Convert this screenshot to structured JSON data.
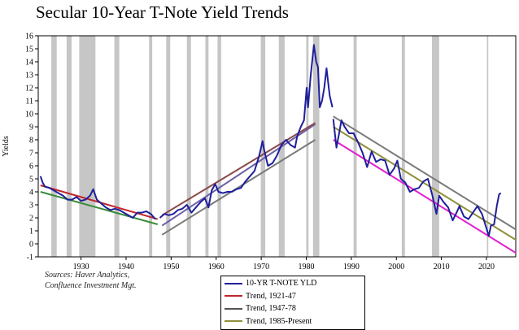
{
  "chart_data": {
    "type": "line",
    "title": "Secular 10-Year T-Note Yield Trends",
    "xlabel": "",
    "ylabel": "Yields",
    "xlim": [
      1920.5,
      2026.5
    ],
    "ylim": [
      -1,
      16
    ],
    "yticks": [
      -1,
      0,
      1,
      2,
      3,
      4,
      5,
      6,
      7,
      8,
      9,
      10,
      11,
      12,
      13,
      14,
      15,
      16
    ],
    "xticks": [
      1930,
      1940,
      1950,
      1960,
      1970,
      1980,
      1990,
      2000,
      2010,
      2020
    ],
    "grid": false,
    "legend_position": "bottom",
    "recessions": [
      [
        1923.4,
        1924.6
      ],
      [
        1926.8,
        1927.9
      ],
      [
        1929.6,
        1933.2
      ],
      [
        1937.4,
        1938.5
      ],
      [
        1945.1,
        1945.8
      ],
      [
        1948.9,
        1949.8
      ],
      [
        1953.5,
        1954.4
      ],
      [
        1957.6,
        1958.3
      ],
      [
        1960.3,
        1961.1
      ],
      [
        1969.9,
        1970.9
      ],
      [
        1973.9,
        1975.2
      ],
      [
        1980.0,
        1980.5
      ],
      [
        1981.5,
        1982.9
      ],
      [
        1990.5,
        1991.2
      ],
      [
        2001.2,
        2001.9
      ],
      [
        2007.9,
        2009.5
      ],
      [
        2020.1,
        2020.4
      ]
    ],
    "series": [
      {
        "name": "10-YR T-NOTE YLD",
        "color": "#1f1f9c",
        "segments": [
          [
            [
              1921.0,
              5.2
            ],
            [
              1921.5,
              4.7
            ],
            [
              1922.0,
              4.4
            ],
            [
              1923.0,
              4.3
            ],
            [
              1924.0,
              4.1
            ],
            [
              1925.0,
              3.9
            ],
            [
              1926.0,
              3.7
            ],
            [
              1927.0,
              3.4
            ],
            [
              1928.0,
              3.4
            ],
            [
              1929.0,
              3.6
            ],
            [
              1930.0,
              3.3
            ],
            [
              1931.0,
              3.4
            ],
            [
              1932.0,
              3.7
            ],
            [
              1932.7,
              4.2
            ],
            [
              1933.5,
              3.4
            ],
            [
              1934.5,
              3.1
            ],
            [
              1935.5,
              2.8
            ],
            [
              1936.5,
              2.6
            ],
            [
              1937.5,
              2.7
            ],
            [
              1938.5,
              2.6
            ],
            [
              1939.5,
              2.4
            ],
            [
              1940.5,
              2.2
            ],
            [
              1941.5,
              2.0
            ],
            [
              1942.5,
              2.4
            ],
            [
              1943.5,
              2.4
            ],
            [
              1944.5,
              2.5
            ],
            [
              1945.5,
              2.3
            ],
            [
              1946.5,
              1.9
            ]
          ],
          [
            [
              1947.5,
              2.0
            ],
            [
              1948.5,
              2.3
            ],
            [
              1949.5,
              2.2
            ],
            [
              1950.5,
              2.3
            ],
            [
              1951.5,
              2.6
            ],
            [
              1952.5,
              2.7
            ],
            [
              1953.5,
              3.0
            ],
            [
              1954.5,
              2.4
            ],
            [
              1955.5,
              2.8
            ],
            [
              1956.5,
              3.2
            ],
            [
              1957.5,
              3.5
            ],
            [
              1958.3,
              2.8
            ],
            [
              1959.0,
              4.1
            ],
            [
              1959.8,
              4.6
            ],
            [
              1960.5,
              4.0
            ],
            [
              1961.5,
              3.9
            ],
            [
              1962.5,
              4.0
            ],
            [
              1963.5,
              4.0
            ],
            [
              1964.5,
              4.2
            ],
            [
              1965.5,
              4.3
            ],
            [
              1966.5,
              4.8
            ],
            [
              1967.5,
              5.2
            ],
            [
              1968.5,
              5.6
            ],
            [
              1969.5,
              6.7
            ],
            [
              1970.3,
              7.9
            ],
            [
              1970.6,
              7.3
            ],
            [
              1971.5,
              6.0
            ],
            [
              1972.5,
              6.2
            ],
            [
              1973.5,
              6.8
            ],
            [
              1974.5,
              7.6
            ],
            [
              1975.5,
              8.0
            ],
            [
              1976.5,
              7.6
            ],
            [
              1977.5,
              7.4
            ],
            [
              1978.0,
              8.3
            ],
            [
              1978.8,
              9.0
            ],
            [
              1979.5,
              9.5
            ],
            [
              1980.1,
              12.0
            ],
            [
              1980.4,
              10.5
            ],
            [
              1981.0,
              13.0
            ],
            [
              1981.7,
              15.3
            ],
            [
              1982.2,
              14.0
            ],
            [
              1982.6,
              13.6
            ],
            [
              1983.0,
              10.5
            ],
            [
              1983.5,
              11.0
            ],
            [
              1984.0,
              12.0
            ],
            [
              1984.5,
              13.5
            ],
            [
              1984.9,
              12.3
            ],
            [
              1985.2,
              11.4
            ],
            [
              1985.8,
              10.5
            ]
          ],
          [
            [
              1986.0,
              9.6
            ],
            [
              1986.7,
              7.4
            ],
            [
              1987.3,
              8.5
            ],
            [
              1987.8,
              9.5
            ],
            [
              1988.5,
              9.0
            ],
            [
              1989.5,
              8.5
            ],
            [
              1990.5,
              8.5
            ],
            [
              1991.5,
              7.8
            ],
            [
              1992.5,
              7.0
            ],
            [
              1993.5,
              5.9
            ],
            [
              1994.5,
              7.1
            ],
            [
              1995.5,
              6.3
            ],
            [
              1996.5,
              6.5
            ],
            [
              1997.5,
              6.4
            ],
            [
              1998.5,
              5.3
            ],
            [
              1999.5,
              5.8
            ],
            [
              2000.2,
              6.4
            ],
            [
              2001.0,
              5.0
            ],
            [
              2002.0,
              4.7
            ],
            [
              2003.0,
              4.0
            ],
            [
              2004.0,
              4.2
            ],
            [
              2005.0,
              4.3
            ],
            [
              2006.0,
              4.8
            ],
            [
              2007.0,
              5.0
            ],
            [
              2008.0,
              3.7
            ],
            [
              2008.9,
              2.3
            ],
            [
              2009.5,
              3.7
            ],
            [
              2010.5,
              3.2
            ],
            [
              2011.5,
              2.8
            ],
            [
              2012.5,
              1.8
            ],
            [
              2013.5,
              2.5
            ],
            [
              2014.0,
              2.9
            ],
            [
              2015.0,
              2.1
            ],
            [
              2016.0,
              1.9
            ],
            [
              2017.0,
              2.4
            ],
            [
              2018.0,
              2.9
            ],
            [
              2019.0,
              2.3
            ],
            [
              2020.0,
              1.2
            ],
            [
              2020.5,
              0.6
            ],
            [
              2021.0,
              1.4
            ],
            [
              2021.7,
              1.5
            ],
            [
              2022.3,
              2.9
            ],
            [
              2022.8,
              3.8
            ],
            [
              2023.2,
              3.9
            ]
          ]
        ]
      },
      {
        "name": "Trend, 1921-47",
        "color": "#c0262d",
        "points": [
          [
            1921,
            4.5
          ],
          [
            1947,
            1.9
          ]
        ]
      },
      {
        "name": "",
        "color": "#3a8c3a",
        "points": [
          [
            1921,
            4.0
          ],
          [
            1947,
            1.5
          ]
        ]
      },
      {
        "name": "Trend, 1947-78",
        "color": "#6b5fa8",
        "points": [
          [
            1948,
            1.4
          ],
          [
            1982,
            9.2
          ]
        ]
      },
      {
        "name": "",
        "color": "#8b4a4a",
        "points": [
          [
            1948,
            2.2
          ],
          [
            1982,
            9.3
          ]
        ]
      },
      {
        "name": "",
        "color": "#7a7a7a",
        "points": [
          [
            1948,
            0.7
          ],
          [
            1982,
            8.0
          ]
        ]
      },
      {
        "name": "Trend, 1985-Present",
        "color": "#8f8f3a",
        "points": [
          [
            1986,
            9.0
          ],
          [
            2027,
            0.2
          ]
        ]
      },
      {
        "name": "",
        "color": "#7a7a7a",
        "points": [
          [
            1986,
            9.8
          ],
          [
            2027,
            1.0
          ]
        ]
      },
      {
        "name": "",
        "color": "#e020d0",
        "points": [
          [
            1986,
            8.0
          ],
          [
            2027,
            -0.8
          ]
        ]
      }
    ]
  },
  "sources": {
    "line1": "Sources:  Haver Analytics,",
    "line2": "Confluence Investment Mgt."
  },
  "legend": [
    {
      "label": "10-YR T-NOTE YLD",
      "color": "#1f1f9c"
    },
    {
      "label": "Trend, 1921-47",
      "color": "#c0262d"
    },
    {
      "label": "Trend, 1947-78",
      "color": "#555555"
    },
    {
      "label": "Trend, 1985-Present",
      "color": "#8f8f3a"
    }
  ]
}
